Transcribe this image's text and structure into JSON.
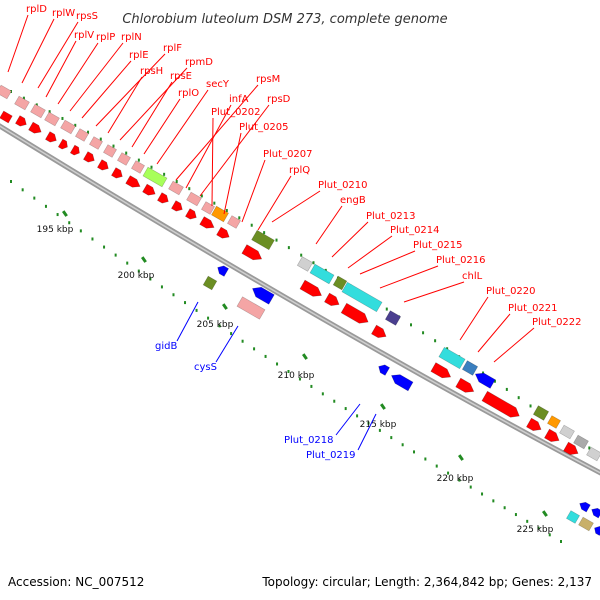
{
  "title": "Chlorobium luteolum DSM 273, complete genome",
  "footer": {
    "accession": "Accession: NC_007512",
    "summary": "Topology: circular; Length: 2,364,842 bp; Genes: 2,137"
  },
  "colors": {
    "forward_cds": "#ff0000",
    "reverse_cds": "#0000ff",
    "forward_label": "#ff0000",
    "reverse_label": "#0000ff",
    "backbone": "#999999",
    "tick": "#228b22",
    "ribosomal_box": "#f4a5a5",
    "translation_box": "#a8ff5a",
    "cog_orange": "#ff9900",
    "cog_olive": "#6b8e23",
    "cog_cyan": "#33dddd",
    "cog_navy": "#4a3f8f",
    "cog_steelblue": "#3a7fbf",
    "cog_gray": "#aaaaaa",
    "cog_lightgray": "#d0d0d0",
    "cog_tan": "#c8b06a"
  },
  "ticks": [
    "195 kbp",
    "200 kbp",
    "205 kbp",
    "210 kbp",
    "215 kbp",
    "220 kbp",
    "225 kbp"
  ],
  "gene_labels_forward": [
    "rplD",
    "rplW",
    "rpsS",
    "rplV",
    "rplP",
    "rplN",
    "rplE",
    "rplF",
    "rpsH",
    "rpmD",
    "rpsE",
    "rplO",
    "secY",
    "rpsM",
    "infA",
    "rpsD",
    "Plut_0202",
    "Plut_0205",
    "Plut_0207",
    "rplQ",
    "Plut_0210",
    "engB",
    "Plut_0213",
    "Plut_0214",
    "Plut_0215",
    "Plut_0216",
    "chlL",
    "Plut_0220",
    "Plut_0221",
    "Plut_0222"
  ],
  "gene_labels_reverse": [
    "gidB",
    "cysS",
    "Plut_0218",
    "Plut_0219"
  ]
}
